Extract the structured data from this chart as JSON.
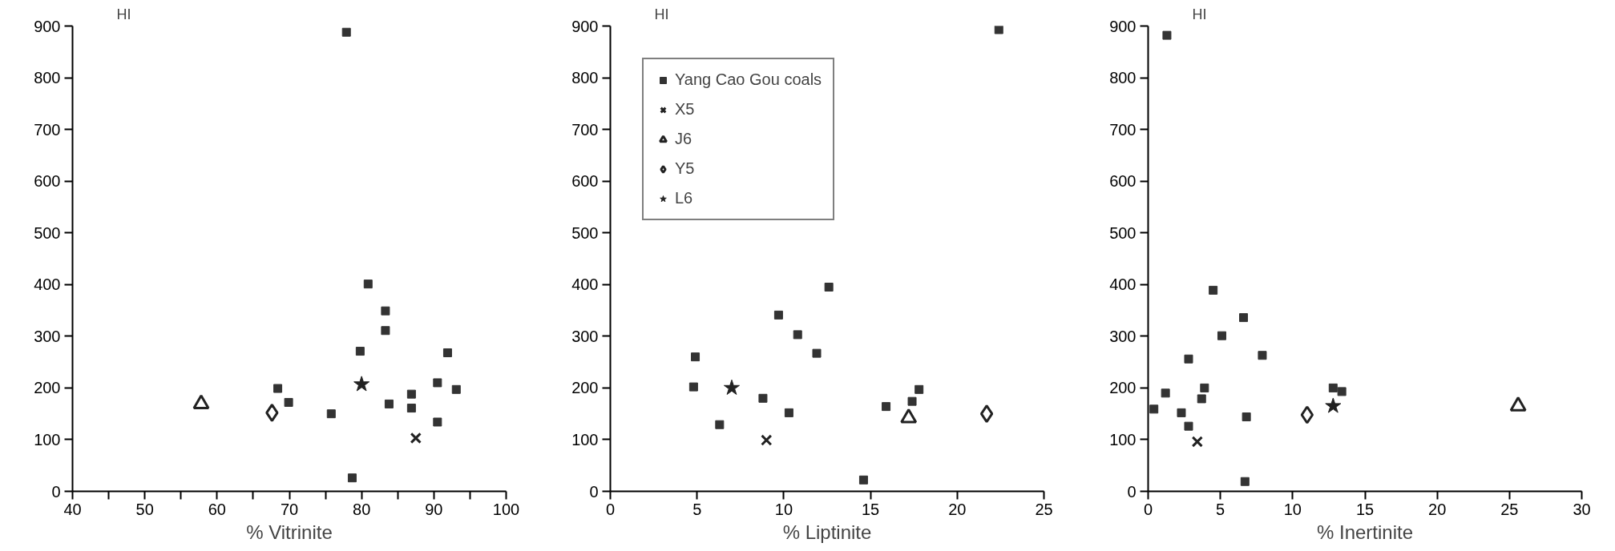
{
  "chart_data": [
    {
      "type": "scatter",
      "xlabel": "% Vitrinite",
      "ylabel": "HI",
      "xlim": [
        40,
        100
      ],
      "ylim": [
        0,
        900
      ],
      "xticks": [
        40,
        {
          "value": 45,
          "label": null
        },
        50,
        {
          "value": 55,
          "label": null
        },
        60,
        {
          "value": 65,
          "label": null
        },
        70,
        {
          "value": 75,
          "label": null
        },
        80,
        {
          "value": 85,
          "label": null
        },
        90,
        {
          "value": 95,
          "label": null
        },
        100
      ],
      "yticks": [
        0,
        100,
        200,
        300,
        400,
        500,
        600,
        700,
        800,
        900
      ],
      "grid": false,
      "legend": false,
      "series": [
        {
          "marker": "square",
          "color": "#333333",
          "x": [
            77.9,
            80.9,
            83.3,
            83.3,
            79.8,
            91.9,
            68.4,
            90.5,
            93.1,
            69.9,
            83.8,
            86.9,
            86.9,
            75.8,
            90.5,
            78.7
          ],
          "values": [
            888,
            401,
            349,
            311,
            271,
            268,
            199,
            210,
            197,
            172,
            169,
            188,
            161,
            150,
            134,
            26
          ]
        },
        {
          "marker": "cross",
          "color": "#222222",
          "x": [
            87.5
          ],
          "values": [
            103
          ]
        },
        {
          "marker": "triangle",
          "color": "#222222",
          "x": [
            57.8
          ],
          "values": [
            169
          ]
        },
        {
          "marker": "diamond",
          "color": "#222222",
          "x": [
            67.6
          ],
          "values": [
            152
          ]
        },
        {
          "marker": "star",
          "color": "#222222",
          "x": [
            80.0
          ],
          "values": [
            207
          ]
        }
      ]
    },
    {
      "type": "scatter",
      "xlabel": "% Liptinite",
      "ylabel": "HI",
      "xlim": [
        0,
        25
      ],
      "ylim": [
        0,
        900
      ],
      "xticks": [
        0,
        5,
        10,
        15,
        20,
        25
      ],
      "yticks": [
        0,
        100,
        200,
        300,
        400,
        500,
        600,
        700,
        800,
        900
      ],
      "grid": false,
      "legend": "top left",
      "series": [
        {
          "name": "Yang Cao Gou coals",
          "marker": "square",
          "color": "#333333",
          "x": [
            4.9,
            4.8,
            6.3,
            8.8,
            9.7,
            10.3,
            10.8,
            11.9,
            12.6,
            14.6,
            15.9,
            17.4,
            17.8,
            22.4
          ],
          "values": [
            260,
            202,
            129,
            180,
            341,
            152,
            303,
            267,
            395,
            22,
            164,
            174,
            197,
            893
          ]
        },
        {
          "name": "X5",
          "marker": "cross",
          "color": "#222222",
          "x": [
            9.0
          ],
          "values": [
            99
          ]
        },
        {
          "name": "J6",
          "marker": "triangle",
          "color": "#222222",
          "x": [
            17.2
          ],
          "values": [
            142
          ]
        },
        {
          "name": "Y5",
          "marker": "diamond",
          "color": "#222222",
          "x": [
            21.7
          ],
          "values": [
            150
          ]
        },
        {
          "name": "L6",
          "marker": "star",
          "color": "#222222",
          "x": [
            7.0
          ],
          "values": [
            200
          ]
        }
      ]
    },
    {
      "type": "scatter",
      "xlabel": "% Inertinite",
      "ylabel": "HI",
      "xlim": [
        0,
        30
      ],
      "ylim": [
        0,
        900
      ],
      "xticks": [
        0,
        5,
        10,
        15,
        20,
        25,
        30
      ],
      "yticks": [
        0,
        100,
        200,
        300,
        400,
        500,
        600,
        700,
        800,
        900
      ],
      "grid": false,
      "legend": false,
      "series": [
        {
          "marker": "square",
          "color": "#333333",
          "x": [
            1.3,
            0.4,
            1.2,
            2.3,
            2.8,
            2.8,
            3.7,
            3.9,
            4.5,
            5.1,
            6.6,
            6.8,
            6.7,
            7.9,
            12.8,
            13.4
          ],
          "values": [
            882,
            159,
            190,
            152,
            126,
            256,
            179,
            200,
            389,
            301,
            336,
            144,
            19,
            263,
            200,
            193
          ]
        },
        {
          "marker": "cross",
          "color": "#222222",
          "x": [
            3.4
          ],
          "values": [
            96
          ]
        },
        {
          "marker": "triangle",
          "color": "#222222",
          "x": [
            25.6
          ],
          "values": [
            165
          ]
        },
        {
          "marker": "diamond",
          "color": "#222222",
          "x": [
            11.0
          ],
          "values": [
            148
          ]
        },
        {
          "marker": "star",
          "color": "#222222",
          "x": [
            12.8
          ],
          "values": [
            165
          ]
        }
      ]
    }
  ]
}
